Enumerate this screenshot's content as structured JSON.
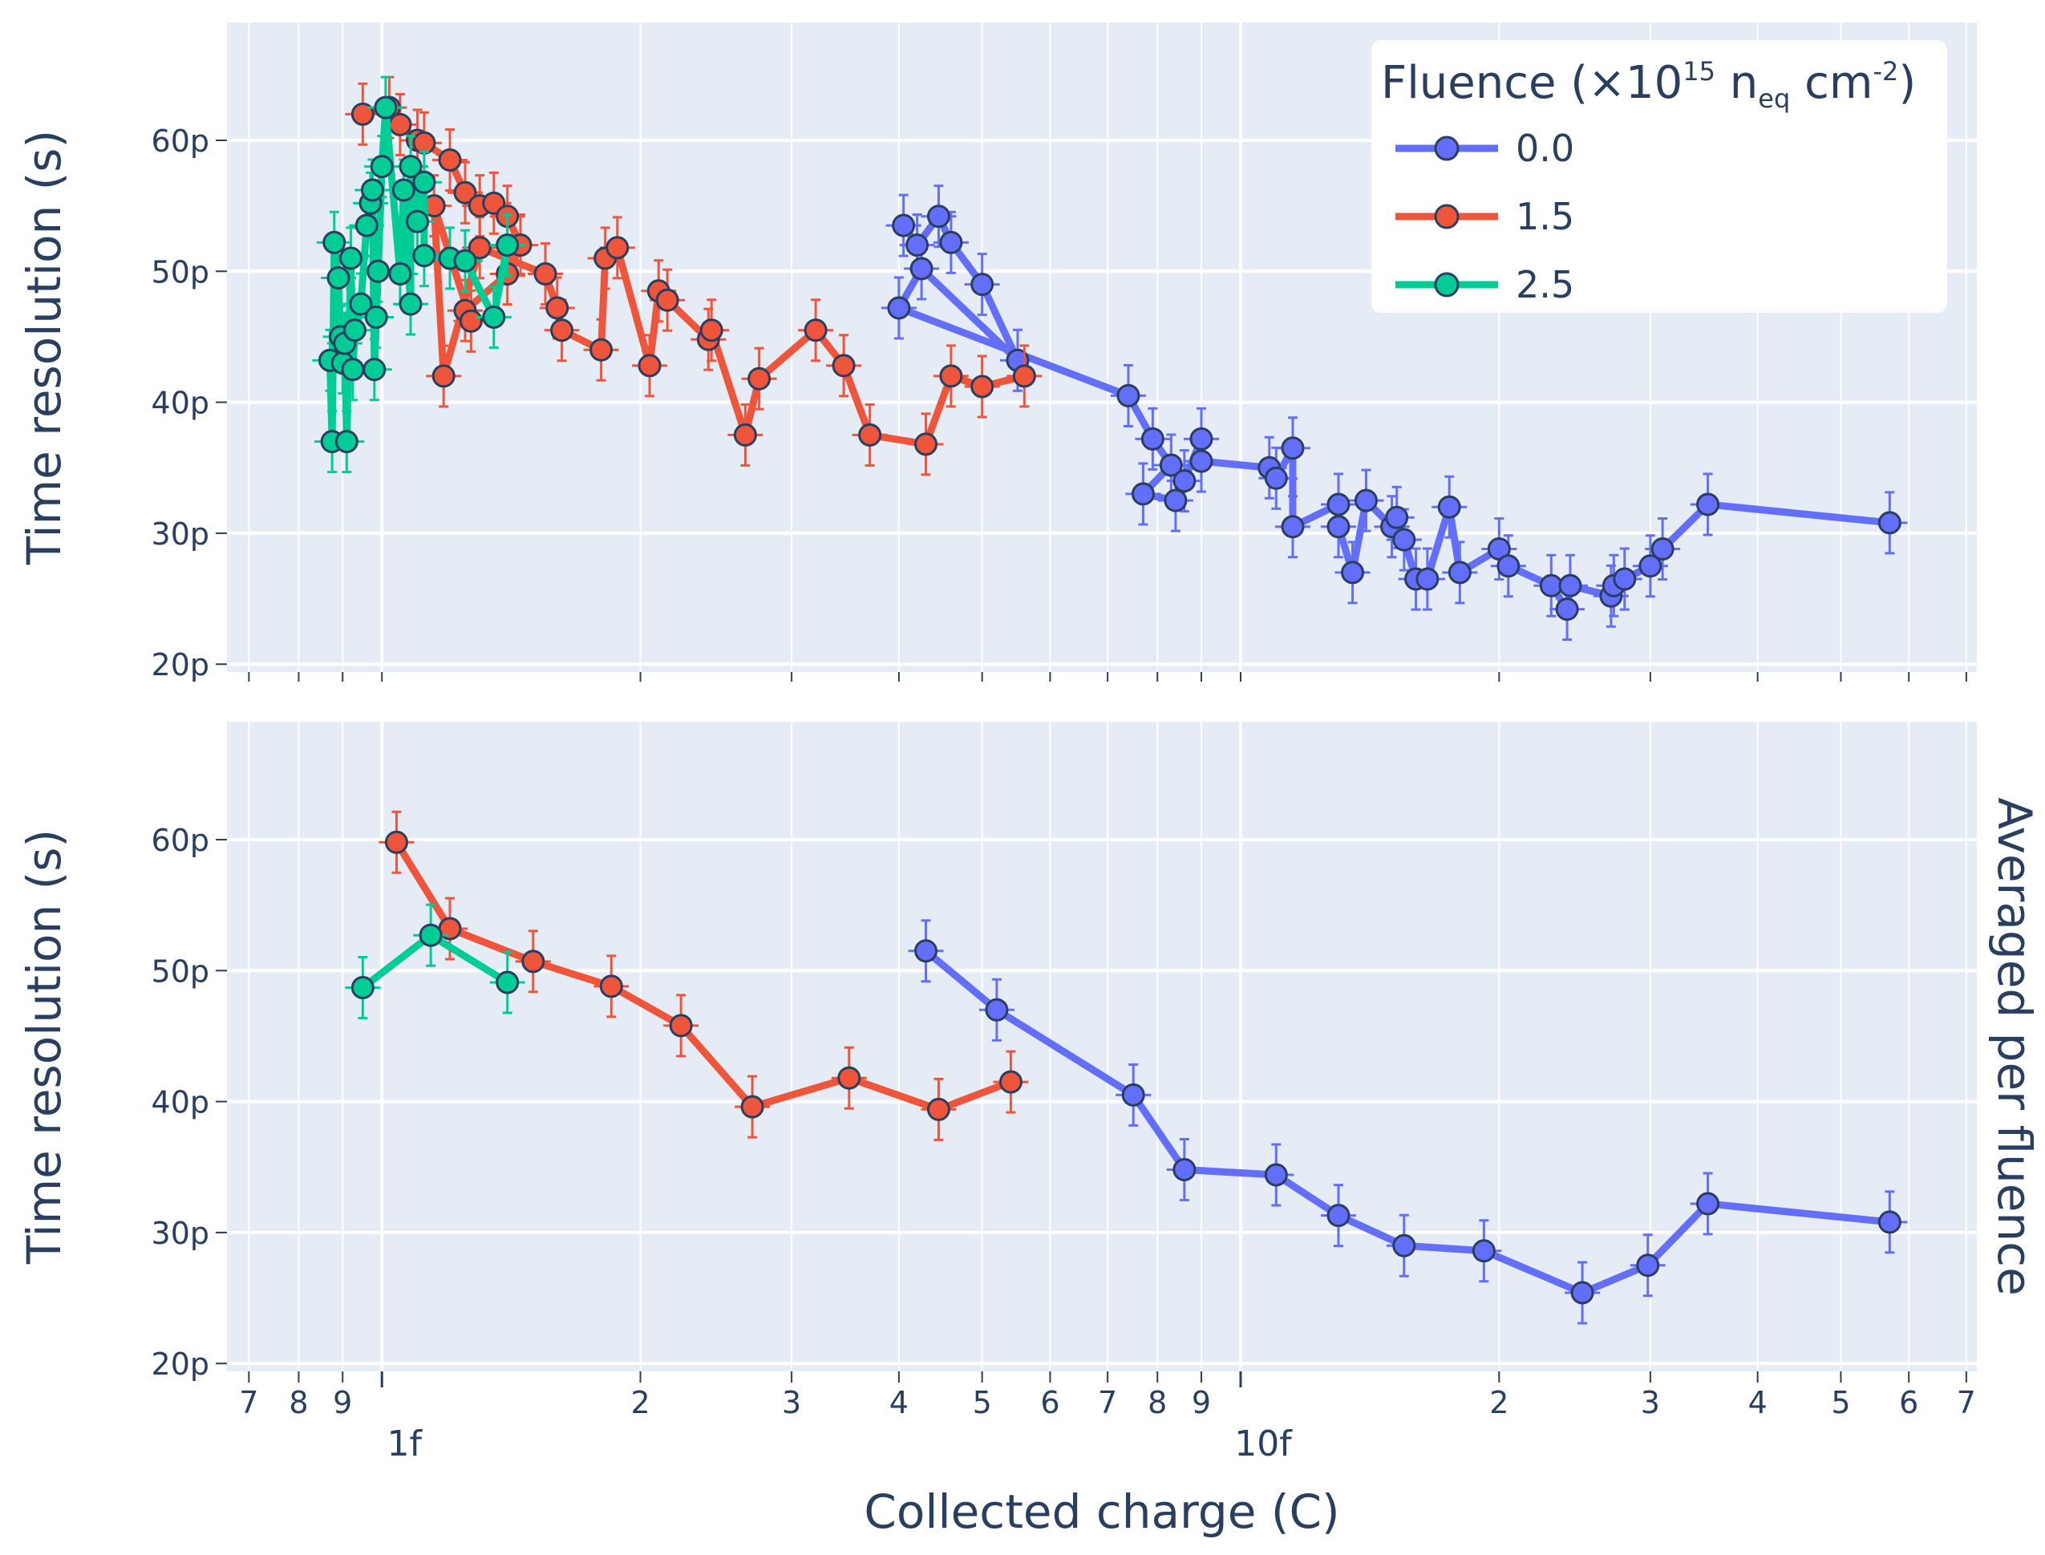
{
  "chart_data": [
    {
      "type": "scatter",
      "panel": "top",
      "xlabel": "Collected charge (C)",
      "ylabel": "Time resolution (s)",
      "x_scale": "log",
      "xlim": [
        6.6e-16,
        7.2e-14
      ],
      "ylim": [
        1.94e-11,
        6.9e-11
      ],
      "y_ticks": [
        2e-11,
        3e-11,
        4e-11,
        5e-11,
        6e-11
      ],
      "y_tick_labels": [
        "20p",
        "30p",
        "40p",
        "50p",
        "60p"
      ],
      "series": [
        {
          "name": "0.0",
          "color": "#636efa",
          "points": [
            [
              4.05e-15,
              5.35e-11
            ],
            [
              4.2e-15,
              5.2e-11
            ],
            [
              4.45e-15,
              5.42e-11
            ],
            [
              4.6e-15,
              5.22e-11
            ],
            [
              5e-15,
              4.9e-11
            ],
            [
              5.5e-15,
              4.32e-11
            ],
            [
              4.25e-15,
              5.02e-11
            ],
            [
              4e-15,
              4.72e-11
            ],
            [
              7.4e-15,
              4.05e-11
            ],
            [
              7.9e-15,
              3.72e-11
            ],
            [
              8.3e-15,
              3.52e-11
            ],
            [
              7.7e-15,
              3.3e-11
            ],
            [
              8.4e-15,
              3.25e-11
            ],
            [
              8.6e-15,
              3.4e-11
            ],
            [
              9e-15,
              3.72e-11
            ],
            [
              9e-15,
              3.55e-11
            ],
            [
              1.08e-14,
              3.5e-11
            ],
            [
              1.1e-14,
              3.42e-11
            ],
            [
              1.15e-14,
              3.65e-11
            ],
            [
              1.15e-14,
              3.05e-11
            ],
            [
              1.3e-14,
              3.22e-11
            ],
            [
              1.3e-14,
              3.05e-11
            ],
            [
              1.35e-14,
              2.7e-11
            ],
            [
              1.4e-14,
              3.25e-11
            ],
            [
              1.5e-14,
              3.05e-11
            ],
            [
              1.52e-14,
              3.12e-11
            ],
            [
              1.55e-14,
              2.95e-11
            ],
            [
              1.6e-14,
              2.65e-11
            ],
            [
              1.65e-14,
              2.65e-11
            ],
            [
              1.75e-14,
              3.2e-11
            ],
            [
              1.8e-14,
              2.7e-11
            ],
            [
              2e-14,
              2.88e-11
            ],
            [
              2.05e-14,
              2.75e-11
            ],
            [
              2.3e-14,
              2.6e-11
            ],
            [
              2.4e-14,
              2.42e-11
            ],
            [
              2.42e-14,
              2.6e-11
            ],
            [
              2.7e-14,
              2.52e-11
            ],
            [
              2.72e-14,
              2.6e-11
            ],
            [
              2.8e-14,
              2.65e-11
            ],
            [
              3e-14,
              2.75e-11
            ],
            [
              3.1e-14,
              2.88e-11
            ],
            [
              3.5e-14,
              3.22e-11
            ],
            [
              5.7e-14,
              3.08e-11
            ]
          ]
        },
        {
          "name": "1.5",
          "color": "#ef553b",
          "points": [
            [
              9.5e-16,
              6.2e-11
            ],
            [
              1.02e-15,
              6.25e-11
            ],
            [
              1.05e-15,
              6.12e-11
            ],
            [
              1.1e-15,
              6e-11
            ],
            [
              1.12e-15,
              5.98e-11
            ],
            [
              1.2e-15,
              5.85e-11
            ],
            [
              1.25e-15,
              5.6e-11
            ],
            [
              1.3e-15,
              5.5e-11
            ],
            [
              1.35e-15,
              5.52e-11
            ],
            [
              1.4e-15,
              5.42e-11
            ],
            [
              1.45e-15,
              5.2e-11
            ],
            [
              1.4e-15,
              4.98e-11
            ],
            [
              1.25e-15,
              4.7e-11
            ],
            [
              1.27e-15,
              4.62e-11
            ],
            [
              1.15e-15,
              5.5e-11
            ],
            [
              1.18e-15,
              4.2e-11
            ],
            [
              1.3e-15,
              5.18e-11
            ],
            [
              1.55e-15,
              4.98e-11
            ],
            [
              1.6e-15,
              4.72e-11
            ],
            [
              1.62e-15,
              4.55e-11
            ],
            [
              1.8e-15,
              4.4e-11
            ],
            [
              1.82e-15,
              5.1e-11
            ],
            [
              1.88e-15,
              5.18e-11
            ],
            [
              2.05e-15,
              4.28e-11
            ],
            [
              2.1e-15,
              4.85e-11
            ],
            [
              2.15e-15,
              4.78e-11
            ],
            [
              2.4e-15,
              4.48e-11
            ],
            [
              2.42e-15,
              4.55e-11
            ],
            [
              2.65e-15,
              3.75e-11
            ],
            [
              2.75e-15,
              4.18e-11
            ],
            [
              3.2e-15,
              4.55e-11
            ],
            [
              3.45e-15,
              4.28e-11
            ],
            [
              3.7e-15,
              3.75e-11
            ],
            [
              4.3e-15,
              3.68e-11
            ],
            [
              4.6e-15,
              4.2e-11
            ],
            [
              5e-15,
              4.12e-11
            ],
            [
              5.6e-15,
              4.2e-11
            ]
          ]
        },
        {
          "name": "2.5",
          "color": "#00cc96",
          "points": [
            [
              8.7e-16,
              4.32e-11
            ],
            [
              8.75e-16,
              3.7e-11
            ],
            [
              8.8e-16,
              5.22e-11
            ],
            [
              8.9e-16,
              4.95e-11
            ],
            [
              8.95e-16,
              4.5e-11
            ],
            [
              9e-16,
              4.3e-11
            ],
            [
              9.05e-16,
              4.45e-11
            ],
            [
              9.1e-16,
              3.7e-11
            ],
            [
              9.2e-16,
              5.1e-11
            ],
            [
              9.25e-16,
              4.25e-11
            ],
            [
              9.3e-16,
              4.55e-11
            ],
            [
              9.45e-16,
              4.75e-11
            ],
            [
              9.6e-16,
              5.35e-11
            ],
            [
              9.7e-16,
              5.52e-11
            ],
            [
              9.75e-16,
              5.62e-11
            ],
            [
              9.8e-16,
              4.25e-11
            ],
            [
              9.85e-16,
              4.65e-11
            ],
            [
              9.9e-16,
              5e-11
            ],
            [
              1e-15,
              5.8e-11
            ],
            [
              1.01e-15,
              6.25e-11
            ],
            [
              1.05e-15,
              4.98e-11
            ],
            [
              1.06e-15,
              5.62e-11
            ],
            [
              1.08e-15,
              4.75e-11
            ],
            [
              1.08e-15,
              5.8e-11
            ],
            [
              1.1e-15,
              5.38e-11
            ],
            [
              1.12e-15,
              5.68e-11
            ],
            [
              1.12e-15,
              5.12e-11
            ],
            [
              1.2e-15,
              5.1e-11
            ],
            [
              1.25e-15,
              5.08e-11
            ],
            [
              1.35e-15,
              4.65e-11
            ],
            [
              1.4e-15,
              5.2e-11
            ]
          ]
        }
      ]
    },
    {
      "type": "line",
      "panel": "bottom",
      "subtitle": "Averaged per fluence",
      "xlabel": "Collected charge (C)",
      "ylabel": "Time resolution (s)",
      "x_scale": "log",
      "xlim": [
        6.6e-16,
        7.2e-14
      ],
      "ylim": [
        1.94e-11,
        6.9e-11
      ],
      "series": [
        {
          "name": "0.0",
          "color": "#636efa",
          "points": [
            [
              4.3e-15,
              5.15e-11
            ],
            [
              5.2e-15,
              4.7e-11
            ],
            [
              7.5e-15,
              4.05e-11
            ],
            [
              8.6e-15,
              3.48e-11
            ],
            [
              1.1e-14,
              3.44e-11
            ],
            [
              1.3e-14,
              3.13e-11
            ],
            [
              1.55e-14,
              2.9e-11
            ],
            [
              1.92e-14,
              2.86e-11
            ],
            [
              2.5e-14,
              2.54e-11
            ],
            [
              2.98e-14,
              2.75e-11
            ],
            [
              3.5e-14,
              3.22e-11
            ],
            [
              5.7e-14,
              3.08e-11
            ]
          ]
        },
        {
          "name": "1.5",
          "color": "#ef553b",
          "points": [
            [
              1.04e-15,
              5.98e-11
            ],
            [
              1.2e-15,
              5.32e-11
            ],
            [
              1.5e-15,
              5.07e-11
            ],
            [
              1.85e-15,
              4.88e-11
            ],
            [
              2.23e-15,
              4.58e-11
            ],
            [
              2.7e-15,
              3.96e-11
            ],
            [
              3.5e-15,
              4.18e-11
            ],
            [
              4.45e-15,
              3.94e-11
            ],
            [
              5.4e-15,
              4.15e-11
            ]
          ]
        },
        {
          "name": "2.5",
          "color": "#00cc96",
          "points": [
            [
              9.5e-16,
              4.87e-11
            ],
            [
              1.14e-15,
              5.27e-11
            ],
            [
              1.4e-15,
              4.91e-11
            ]
          ]
        }
      ]
    }
  ],
  "axes": {
    "y_title": "Time resolution (s)",
    "x_title": "Collected charge (C)",
    "decade_labels": [
      "1f",
      "10f"
    ],
    "minor_labels": [
      "7",
      "8",
      "9",
      "2",
      "3",
      "4",
      "5",
      "6",
      "7",
      "8",
      "9",
      "2",
      "3",
      "4",
      "5",
      "6",
      "7"
    ]
  },
  "legend": {
    "title_prefix": "Fluence (×10",
    "title_exp": "15",
    "title_unit1": " n",
    "title_sub": "eq",
    "title_unit2": " cm",
    "title_exp2": "-2",
    "title_suffix": ")",
    "items": [
      "0.0",
      "1.5",
      "2.5"
    ]
  },
  "colors": {
    "plot_bg": "#e5ecf6",
    "grid": "#ffffff",
    "text": "#2a3f5f",
    "marker_edge": "#2a3f5f"
  }
}
